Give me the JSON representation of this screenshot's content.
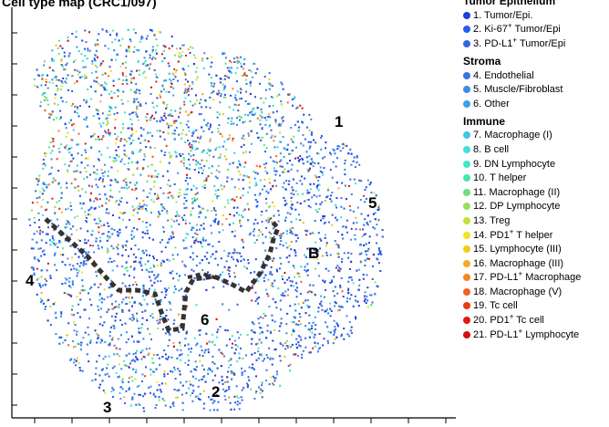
{
  "chart_data": {
    "type": "scatter",
    "title": "Cell type map (CRC1/097)",
    "legend": [
      {
        "group": "Tumor Epithelium",
        "items": [
          {
            "num": "1.",
            "pre": "Tumor/Epi.",
            "sup": "",
            "post": "",
            "color": "#1f3fe0"
          },
          {
            "num": "2.",
            "pre": "Ki-67",
            "sup": "+",
            "post": " Tumor/Epi",
            "color": "#2a5ae8"
          },
          {
            "num": "3.",
            "pre": "PD-L1",
            "sup": "+",
            "post": " Tumor/Epi",
            "color": "#3266e4"
          }
        ]
      },
      {
        "group": "Stroma",
        "items": [
          {
            "num": "4.",
            "pre": "Endothelial",
            "sup": "",
            "post": "",
            "color": "#3a74e0"
          },
          {
            "num": "5.",
            "pre": "Muscle/Fibroblast",
            "sup": "",
            "post": "",
            "color": "#3d8ce6"
          },
          {
            "num": "6.",
            "pre": "Other",
            "sup": "",
            "post": "",
            "color": "#3aa0e8"
          }
        ]
      },
      {
        "group": "Immune",
        "items": [
          {
            "num": "7.",
            "pre": "Macrophage (I)",
            "sup": "",
            "post": "",
            "color": "#3cc8e8"
          },
          {
            "num": "8.",
            "pre": "B cell",
            "sup": "",
            "post": "",
            "color": "#3ee0dc"
          },
          {
            "num": "9.",
            "pre": "DN Lymphocyte",
            "sup": "",
            "post": "",
            "color": "#3ee8c4"
          },
          {
            "num": "10.",
            "pre": "T helper",
            "sup": "",
            "post": "",
            "color": "#48e6a8"
          },
          {
            "num": "11.",
            "pre": "Macrophage (II)",
            "sup": "",
            "post": "",
            "color": "#6ee07e"
          },
          {
            "num": "12.",
            "pre": "DP Lymphocyte",
            "sup": "",
            "post": "",
            "color": "#96e05a"
          },
          {
            "num": "13.",
            "pre": "Treg",
            "sup": "",
            "post": "",
            "color": "#c4e23a"
          },
          {
            "num": "14.",
            "pre": "PD1",
            "sup": "+",
            "post": " T helper",
            "color": "#f2e41c"
          },
          {
            "num": "15.",
            "pre": "Lymphocyte (III)",
            "sup": "",
            "post": "",
            "color": "#f8c81a"
          },
          {
            "num": "16.",
            "pre": "Macrophage (III)",
            "sup": "",
            "post": "",
            "color": "#f8a81e"
          },
          {
            "num": "17.",
            "pre": "PD-L1",
            "sup": "+",
            "post": " Macrophage",
            "color": "#f5861c"
          },
          {
            "num": "18.",
            "pre": "Macrophage (V)",
            "sup": "",
            "post": "",
            "color": "#f0621a"
          },
          {
            "num": "19.",
            "pre": "Tc cell",
            "sup": "",
            "post": "",
            "color": "#ea3a16"
          },
          {
            "num": "20.",
            "pre": "PD1",
            "sup": "+",
            "post": " Tc cell",
            "color": "#e01a12"
          },
          {
            "num": "21.",
            "pre": "PD-L1",
            "sup": "+",
            "post": " Lymphocyte",
            "color": "#d40e0e"
          }
        ]
      }
    ],
    "region_labels": [
      "1",
      "2",
      "3",
      "4",
      "5",
      "6",
      "B"
    ],
    "grid": false
  }
}
